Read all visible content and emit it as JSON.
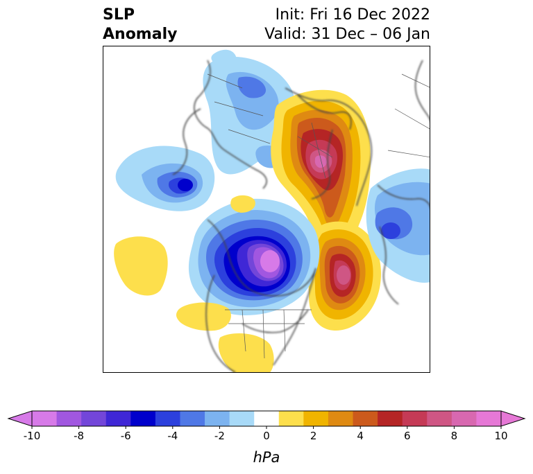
{
  "title": {
    "left_line1": "SLP",
    "left_line2": "Anomaly",
    "init": "Init: Fri 16 Dec 2022",
    "valid": "Valid: 31 Dec – 06 Jan"
  },
  "colorbar": {
    "unit": "hPa",
    "ticks": [
      "-10",
      "-8",
      "-6",
      "-4",
      "-2",
      "0",
      "2",
      "4",
      "6",
      "8",
      "10"
    ],
    "levels": [
      -10,
      -9,
      -8,
      -7,
      -6,
      -5,
      -4,
      -3,
      -2,
      -1,
      1,
      2,
      3,
      4,
      5,
      6,
      7,
      8,
      9,
      10
    ],
    "colors": [
      "#d77ae8",
      "#a157e0",
      "#7346d9",
      "#3f27d6",
      "#0000cc",
      "#2c40dd",
      "#4f78e6",
      "#7cb3f0",
      "#a8daf8",
      "#ffffff",
      "#fddf4c",
      "#f0b400",
      "#df8a12",
      "#cc5a1c",
      "#b52525",
      "#c53a56",
      "#cf5684",
      "#d868b0",
      "#e678d6"
    ],
    "extend": "both"
  }
}
